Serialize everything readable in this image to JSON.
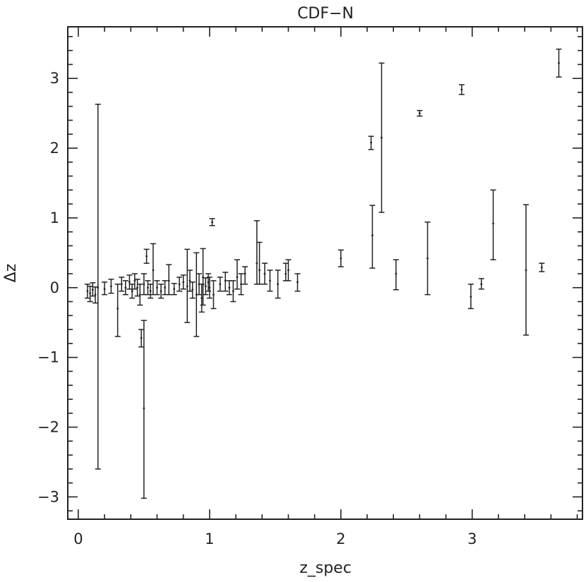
{
  "chart_data": {
    "type": "scatter",
    "title": "CDF−N",
    "xlabel": "z_spec",
    "ylabel": "Δz",
    "xlim": [
      -0.08,
      3.84
    ],
    "ylim": [
      -3.32,
      3.74
    ],
    "x_ticks": [
      0,
      1,
      2,
      3
    ],
    "x_tick_labels": [
      "0",
      "1",
      "2",
      "3"
    ],
    "y_ticks": [
      -3,
      -2,
      -1,
      0,
      1,
      2,
      3
    ],
    "y_tick_labels": [
      "−3",
      "−2",
      "−1",
      "0",
      "1",
      "2",
      "3"
    ],
    "x_minor_step": 0.2,
    "y_minor_step": 0.2,
    "grid": false,
    "legend": "none",
    "marker_color": "#222222",
    "points": [
      {
        "x": 0.07,
        "y": -0.05,
        "lo": -0.15,
        "hi": 0.05
      },
      {
        "x": 0.09,
        "y": -0.08,
        "lo": -0.2,
        "hi": 0.02
      },
      {
        "x": 0.11,
        "y": -0.03,
        "lo": -0.12,
        "hi": 0.07
      },
      {
        "x": 0.13,
        "y": -0.1,
        "lo": -0.22,
        "hi": 0.01
      },
      {
        "x": 0.15,
        "y": 0.0,
        "lo": -2.6,
        "hi": 2.63
      },
      {
        "x": 0.2,
        "y": -0.02,
        "lo": -0.1,
        "hi": 0.08
      },
      {
        "x": 0.25,
        "y": 0.02,
        "lo": -0.08,
        "hi": 0.12
      },
      {
        "x": 0.3,
        "y": -0.3,
        "lo": -0.7,
        "hi": 0.05
      },
      {
        "x": 0.33,
        "y": 0.05,
        "lo": -0.05,
        "hi": 0.15
      },
      {
        "x": 0.36,
        "y": 0.0,
        "lo": -0.1,
        "hi": 0.1
      },
      {
        "x": 0.39,
        "y": 0.08,
        "lo": -0.02,
        "hi": 0.18
      },
      {
        "x": 0.41,
        "y": -0.05,
        "lo": -0.15,
        "hi": 0.05
      },
      {
        "x": 0.43,
        "y": 0.1,
        "lo": -0.02,
        "hi": 0.2
      },
      {
        "x": 0.45,
        "y": 0.0,
        "lo": -0.12,
        "hi": 0.12
      },
      {
        "x": 0.47,
        "y": -0.1,
        "lo": -0.25,
        "hi": 0.05
      },
      {
        "x": 0.48,
        "y": -0.72,
        "lo": -0.85,
        "hi": -0.6
      },
      {
        "x": 0.5,
        "y": -1.73,
        "lo": -3.02,
        "hi": -0.47
      },
      {
        "x": 0.5,
        "y": 0.05,
        "lo": -0.1,
        "hi": 0.2
      },
      {
        "x": 0.52,
        "y": 0.45,
        "lo": 0.35,
        "hi": 0.55
      },
      {
        "x": 0.53,
        "y": 0.0,
        "lo": -0.1,
        "hi": 0.1
      },
      {
        "x": 0.55,
        "y": -0.05,
        "lo": -0.15,
        "hi": 0.05
      },
      {
        "x": 0.57,
        "y": 0.25,
        "lo": -0.1,
        "hi": 0.63
      },
      {
        "x": 0.6,
        "y": 0.0,
        "lo": -0.1,
        "hi": 0.1
      },
      {
        "x": 0.63,
        "y": -0.05,
        "lo": -0.15,
        "hi": 0.05
      },
      {
        "x": 0.66,
        "y": 0.0,
        "lo": -0.1,
        "hi": 0.1
      },
      {
        "x": 0.69,
        "y": 0.1,
        "lo": -0.1,
        "hi": 0.33
      },
      {
        "x": 0.73,
        "y": -0.02,
        "lo": -0.1,
        "hi": 0.06
      },
      {
        "x": 0.77,
        "y": 0.05,
        "lo": -0.05,
        "hi": 0.15
      },
      {
        "x": 0.8,
        "y": 0.08,
        "lo": -0.02,
        "hi": 0.18
      },
      {
        "x": 0.83,
        "y": 0.02,
        "lo": -0.5,
        "hi": 0.55
      },
      {
        "x": 0.85,
        "y": 0.1,
        "lo": -0.05,
        "hi": 0.25
      },
      {
        "x": 0.87,
        "y": -0.03,
        "lo": -0.15,
        "hi": 0.08
      },
      {
        "x": 0.9,
        "y": -0.1,
        "lo": -0.7,
        "hi": 0.5
      },
      {
        "x": 0.92,
        "y": 0.05,
        "lo": -0.1,
        "hi": 0.2
      },
      {
        "x": 0.94,
        "y": -0.15,
        "lo": -0.35,
        "hi": 0.05
      },
      {
        "x": 0.95,
        "y": 0.15,
        "lo": -0.25,
        "hi": 0.56
      },
      {
        "x": 0.97,
        "y": 0.02,
        "lo": -0.1,
        "hi": 0.14
      },
      {
        "x": 0.99,
        "y": 0.08,
        "lo": -0.05,
        "hi": 0.2
      },
      {
        "x": 1.0,
        "y": 0.0,
        "lo": -0.15,
        "hi": 0.15
      },
      {
        "x": 1.02,
        "y": 0.94,
        "lo": 0.89,
        "hi": 0.99
      },
      {
        "x": 1.03,
        "y": -0.1,
        "lo": -0.3,
        "hi": 0.1
      },
      {
        "x": 1.08,
        "y": 0.05,
        "lo": -0.05,
        "hi": 0.15
      },
      {
        "x": 1.12,
        "y": 0.1,
        "lo": -0.05,
        "hi": 0.22
      },
      {
        "x": 1.15,
        "y": 0.0,
        "lo": -0.1,
        "hi": 0.1
      },
      {
        "x": 1.18,
        "y": -0.05,
        "lo": -0.2,
        "hi": 0.1
      },
      {
        "x": 1.21,
        "y": 0.15,
        "lo": -0.02,
        "hi": 0.4
      },
      {
        "x": 1.24,
        "y": 0.05,
        "lo": -0.1,
        "hi": 0.2
      },
      {
        "x": 1.27,
        "y": 0.2,
        "lo": 0.05,
        "hi": 0.3
      },
      {
        "x": 1.36,
        "y": 0.35,
        "lo": 0.05,
        "hi": 0.96
      },
      {
        "x": 1.38,
        "y": 0.25,
        "lo": 0.05,
        "hi": 0.65
      },
      {
        "x": 1.42,
        "y": 0.2,
        "lo": 0.05,
        "hi": 0.35
      },
      {
        "x": 1.46,
        "y": 0.1,
        "lo": -0.05,
        "hi": 0.25
      },
      {
        "x": 1.52,
        "y": 0.05,
        "lo": -0.15,
        "hi": 0.25
      },
      {
        "x": 1.58,
        "y": 0.2,
        "lo": 0.1,
        "hi": 0.35
      },
      {
        "x": 1.6,
        "y": 0.25,
        "lo": 0.1,
        "hi": 0.4
      },
      {
        "x": 1.67,
        "y": 0.08,
        "lo": -0.05,
        "hi": 0.2
      },
      {
        "x": 2.0,
        "y": 0.42,
        "lo": 0.3,
        "hi": 0.54
      },
      {
        "x": 2.23,
        "y": 2.08,
        "lo": 1.98,
        "hi": 2.17
      },
      {
        "x": 2.24,
        "y": 0.75,
        "lo": 0.28,
        "hi": 1.18
      },
      {
        "x": 2.31,
        "y": 2.15,
        "lo": 1.08,
        "hi": 3.22
      },
      {
        "x": 2.42,
        "y": 0.2,
        "lo": -0.03,
        "hi": 0.4
      },
      {
        "x": 2.6,
        "y": 2.5,
        "lo": 2.46,
        "hi": 2.54
      },
      {
        "x": 2.66,
        "y": 0.42,
        "lo": -0.1,
        "hi": 0.94
      },
      {
        "x": 2.92,
        "y": 2.84,
        "lo": 2.77,
        "hi": 2.91
      },
      {
        "x": 2.99,
        "y": -0.13,
        "lo": -0.3,
        "hi": 0.05
      },
      {
        "x": 3.07,
        "y": 0.05,
        "lo": -0.02,
        "hi": 0.13
      },
      {
        "x": 3.16,
        "y": 0.92,
        "lo": 0.4,
        "hi": 1.4
      },
      {
        "x": 3.41,
        "y": 0.25,
        "lo": -0.68,
        "hi": 1.19
      },
      {
        "x": 3.53,
        "y": 0.29,
        "lo": 0.23,
        "hi": 0.35
      },
      {
        "x": 3.66,
        "y": 3.22,
        "lo": 3.02,
        "hi": 3.42
      }
    ]
  }
}
